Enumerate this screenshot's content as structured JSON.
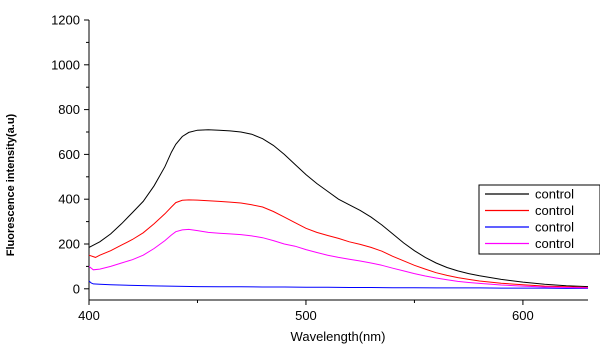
{
  "chart_data": {
    "type": "line",
    "title": "",
    "xlabel": "Wavelength(nm)",
    "ylabel": "Fluorescence intensity(a.u)",
    "xlim": [
      400,
      630
    ],
    "ylim": [
      -50,
      1200
    ],
    "x_ticks": [
      400,
      500,
      600
    ],
    "y_ticks": [
      0,
      200,
      400,
      600,
      800,
      1000,
      1200
    ],
    "grid": false,
    "legend_position": "right",
    "series": [
      {
        "name": "control",
        "color": "#000000",
        "points": [
          [
            400,
            185
          ],
          [
            405,
            210
          ],
          [
            410,
            245
          ],
          [
            415,
            290
          ],
          [
            420,
            340
          ],
          [
            425,
            390
          ],
          [
            430,
            460
          ],
          [
            435,
            545
          ],
          [
            438,
            610
          ],
          [
            440,
            645
          ],
          [
            443,
            680
          ],
          [
            446,
            698
          ],
          [
            450,
            708
          ],
          [
            455,
            710
          ],
          [
            460,
            708
          ],
          [
            465,
            705
          ],
          [
            470,
            700
          ],
          [
            475,
            690
          ],
          [
            480,
            670
          ],
          [
            485,
            640
          ],
          [
            490,
            600
          ],
          [
            495,
            555
          ],
          [
            500,
            510
          ],
          [
            505,
            470
          ],
          [
            510,
            435
          ],
          [
            515,
            400
          ],
          [
            520,
            375
          ],
          [
            525,
            350
          ],
          [
            530,
            320
          ],
          [
            535,
            285
          ],
          [
            540,
            245
          ],
          [
            545,
            205
          ],
          [
            550,
            170
          ],
          [
            555,
            140
          ],
          [
            560,
            115
          ],
          [
            565,
            95
          ],
          [
            570,
            80
          ],
          [
            575,
            68
          ],
          [
            580,
            58
          ],
          [
            590,
            42
          ],
          [
            600,
            30
          ],
          [
            610,
            20
          ],
          [
            620,
            14
          ],
          [
            630,
            10
          ]
        ]
      },
      {
        "name": "control",
        "color": "#ff0000",
        "points": [
          [
            400,
            150
          ],
          [
            403,
            140
          ],
          [
            405,
            150
          ],
          [
            410,
            170
          ],
          [
            415,
            195
          ],
          [
            420,
            220
          ],
          [
            425,
            250
          ],
          [
            430,
            290
          ],
          [
            435,
            335
          ],
          [
            438,
            365
          ],
          [
            440,
            385
          ],
          [
            443,
            395
          ],
          [
            446,
            397
          ],
          [
            450,
            396
          ],
          [
            455,
            393
          ],
          [
            460,
            390
          ],
          [
            465,
            387
          ],
          [
            470,
            383
          ],
          [
            475,
            375
          ],
          [
            480,
            365
          ],
          [
            485,
            345
          ],
          [
            490,
            320
          ],
          [
            495,
            295
          ],
          [
            500,
            270
          ],
          [
            505,
            252
          ],
          [
            510,
            238
          ],
          [
            515,
            225
          ],
          [
            520,
            210
          ],
          [
            525,
            198
          ],
          [
            530,
            185
          ],
          [
            535,
            168
          ],
          [
            540,
            145
          ],
          [
            545,
            125
          ],
          [
            550,
            105
          ],
          [
            555,
            88
          ],
          [
            560,
            72
          ],
          [
            565,
            60
          ],
          [
            570,
            50
          ],
          [
            575,
            42
          ],
          [
            580,
            35
          ],
          [
            590,
            25
          ],
          [
            600,
            18
          ],
          [
            610,
            12
          ],
          [
            620,
            9
          ],
          [
            630,
            6
          ]
        ]
      },
      {
        "name": "control",
        "color": "#0000ff",
        "points": [
          [
            400,
            35
          ],
          [
            401,
            26
          ],
          [
            402,
            22
          ],
          [
            405,
            20
          ],
          [
            410,
            18
          ],
          [
            420,
            15
          ],
          [
            430,
            13
          ],
          [
            440,
            11
          ],
          [
            450,
            10
          ],
          [
            460,
            9
          ],
          [
            470,
            9
          ],
          [
            480,
            8
          ],
          [
            490,
            8
          ],
          [
            500,
            7
          ],
          [
            510,
            7
          ],
          [
            520,
            6
          ],
          [
            530,
            6
          ],
          [
            540,
            5
          ],
          [
            550,
            5
          ],
          [
            560,
            4
          ],
          [
            570,
            4
          ],
          [
            580,
            4
          ],
          [
            590,
            3
          ],
          [
            600,
            3
          ],
          [
            610,
            3
          ],
          [
            620,
            2
          ],
          [
            630,
            2
          ]
        ]
      },
      {
        "name": "control",
        "color": "#ff00ff",
        "points": [
          [
            400,
            100
          ],
          [
            402,
            85
          ],
          [
            405,
            88
          ],
          [
            410,
            100
          ],
          [
            415,
            115
          ],
          [
            420,
            130
          ],
          [
            425,
            150
          ],
          [
            430,
            180
          ],
          [
            435,
            215
          ],
          [
            438,
            240
          ],
          [
            440,
            255
          ],
          [
            443,
            263
          ],
          [
            446,
            265
          ],
          [
            450,
            260
          ],
          [
            455,
            252
          ],
          [
            460,
            248
          ],
          [
            465,
            245
          ],
          [
            470,
            242
          ],
          [
            475,
            236
          ],
          [
            480,
            228
          ],
          [
            485,
            215
          ],
          [
            490,
            200
          ],
          [
            495,
            190
          ],
          [
            500,
            175
          ],
          [
            505,
            162
          ],
          [
            510,
            150
          ],
          [
            515,
            140
          ],
          [
            520,
            132
          ],
          [
            525,
            124
          ],
          [
            530,
            115
          ],
          [
            535,
            105
          ],
          [
            540,
            92
          ],
          [
            545,
            80
          ],
          [
            550,
            68
          ],
          [
            555,
            57
          ],
          [
            560,
            48
          ],
          [
            565,
            40
          ],
          [
            570,
            33
          ],
          [
            575,
            28
          ],
          [
            580,
            24
          ],
          [
            590,
            17
          ],
          [
            600,
            12
          ],
          [
            610,
            8
          ],
          [
            620,
            6
          ],
          [
            630,
            4
          ]
        ]
      }
    ]
  }
}
